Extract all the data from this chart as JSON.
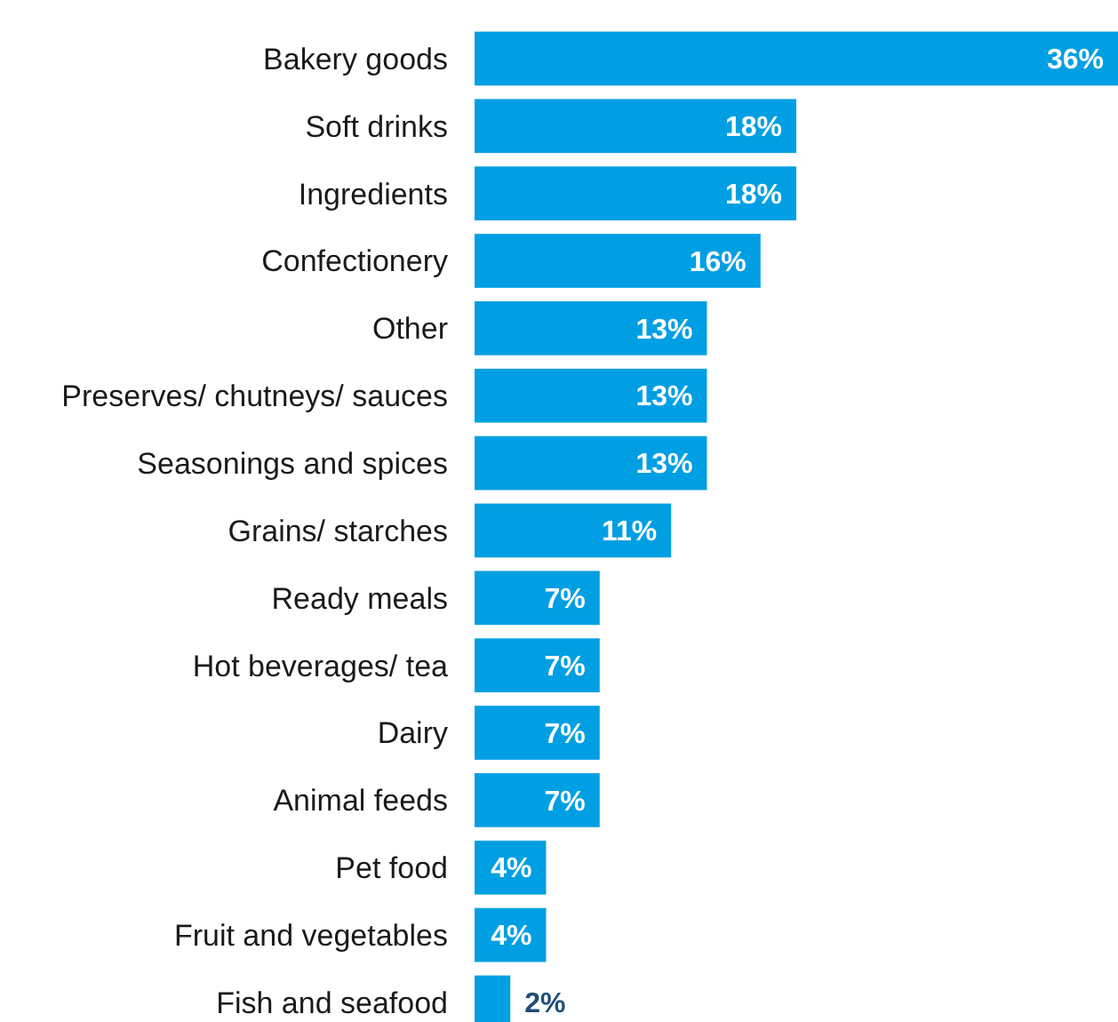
{
  "chart_data": {
    "type": "bar",
    "orientation": "horizontal",
    "categories": [
      "Bakery goods",
      "Soft drinks",
      "Ingredients",
      "Confectionery",
      "Other",
      "Preserves/ chutneys/ sauces",
      "Seasonings and spices",
      "Grains/ starches",
      "Ready meals",
      "Hot beverages/ tea",
      "Dairy",
      "Animal feeds",
      "Pet food",
      "Fruit and vegetables",
      "Fish and seafood"
    ],
    "values": [
      36,
      18,
      18,
      16,
      13,
      13,
      13,
      11,
      7,
      7,
      7,
      7,
      4,
      4,
      2
    ],
    "value_labels": [
      "36%",
      "18%",
      "18%",
      "16%",
      "13%",
      "13%",
      "13%",
      "11%",
      "7%",
      "7%",
      "7%",
      "7%",
      "4%",
      "4%",
      "2%"
    ],
    "color": "#009fe3",
    "xlim": [
      0,
      36
    ]
  }
}
